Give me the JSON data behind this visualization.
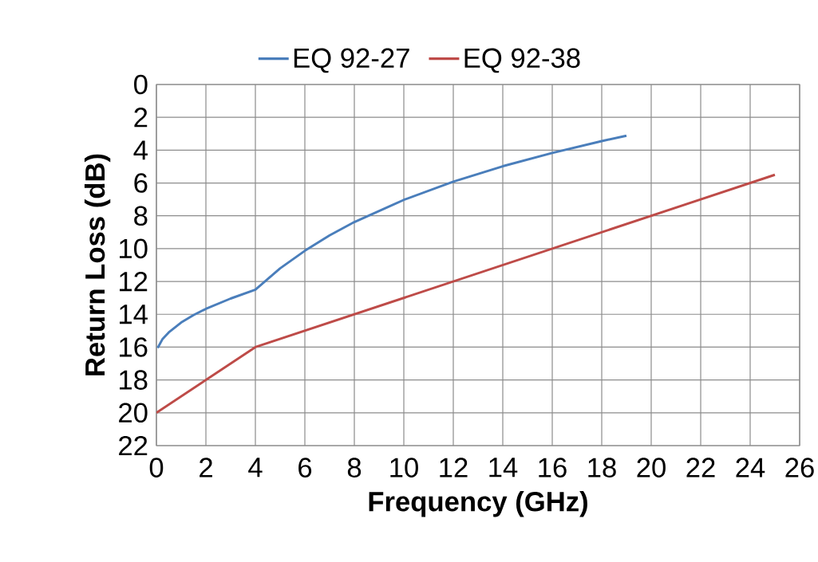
{
  "chart_data": {
    "type": "line",
    "xlabel": "Frequency (GHz)",
    "ylabel": "Return Loss (dB)",
    "xlim": [
      0,
      26
    ],
    "xticks": [
      0,
      2,
      4,
      6,
      8,
      10,
      12,
      14,
      16,
      18,
      20,
      22,
      24,
      26
    ],
    "ylim": [
      22,
      0
    ],
    "yticks": [
      0,
      2,
      4,
      6,
      8,
      10,
      12,
      14,
      16,
      18,
      20,
      22
    ],
    "grid": true,
    "legend": "top",
    "series": [
      {
        "name": "EQ 92-27",
        "color": "#4a7ebb",
        "x": [
          0.05,
          0.25,
          0.5,
          1,
          1.5,
          2,
          3,
          4,
          5,
          6,
          7,
          8,
          10,
          12,
          14,
          16,
          18,
          19
        ],
        "values": [
          16.05,
          15.5,
          15.1,
          14.5,
          14.05,
          13.67,
          13.04,
          12.5,
          11.2,
          10.13,
          9.19,
          8.38,
          7.03,
          5.92,
          4.98,
          4.17,
          3.45,
          3.12
        ]
      },
      {
        "name": "EQ 92-38",
        "color": "#be4b48",
        "x": [
          0,
          4,
          25
        ],
        "values": [
          20,
          16,
          5.5
        ]
      }
    ]
  }
}
